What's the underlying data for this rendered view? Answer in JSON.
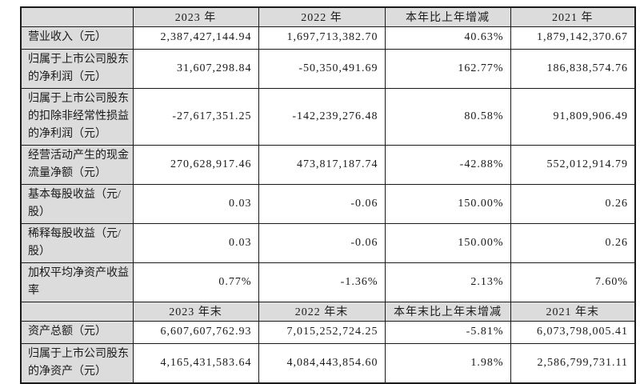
{
  "style": {
    "header_bg": "#dcdcdc",
    "label_bg": "#dcdcdc",
    "border_color": "#1b1b1b",
    "text_color": "#1a1a1a",
    "page_bg": "#ffffff"
  },
  "table": {
    "section1": {
      "headers": [
        "",
        "2023 年",
        "2022 年",
        "本年比上年增减",
        "2021 年"
      ],
      "rows": [
        {
          "label": "营业收入（元）",
          "values": [
            "2,387,427,144.94",
            "1,697,713,382.70",
            "40.63%",
            "1,879,142,370.67"
          ]
        },
        {
          "label": "归属于上市公司股东的净利润（元）",
          "values": [
            "31,607,298.84",
            "-50,350,491.69",
            "162.77%",
            "186,838,574.76"
          ]
        },
        {
          "label": "归属于上市公司股东的扣除非经常性损益的净利润（元）",
          "values": [
            "-27,617,351.25",
            "-142,239,276.48",
            "80.58%",
            "91,809,906.49"
          ]
        },
        {
          "label": "经营活动产生的现金流量净额（元）",
          "values": [
            "270,628,917.46",
            "473,817,187.74",
            "-42.88%",
            "552,012,914.79"
          ]
        },
        {
          "label": "基本每股收益（元/股）",
          "values": [
            "0.03",
            "-0.06",
            "150.00%",
            "0.26"
          ]
        },
        {
          "label": "稀释每股收益（元/股）",
          "values": [
            "0.03",
            "-0.06",
            "150.00%",
            "0.26"
          ]
        },
        {
          "label": "加权平均净资产收益率",
          "values": [
            "0.77%",
            "-1.36%",
            "2.13%",
            "7.60%"
          ]
        }
      ]
    },
    "section2": {
      "headers": [
        "",
        "2023 年末",
        "2022 年末",
        "本年末比上年末增减",
        "2021 年末"
      ],
      "rows": [
        {
          "label": "资产总额（元）",
          "values": [
            "6,607,607,762.93",
            "7,015,252,724.25",
            "-5.81%",
            "6,073,798,005.41"
          ]
        },
        {
          "label": "归属于上市公司股东的净资产（元）",
          "values": [
            "4,165,431,583.64",
            "4,084,443,854.60",
            "1.98%",
            "2,586,799,731.11"
          ]
        }
      ]
    }
  }
}
